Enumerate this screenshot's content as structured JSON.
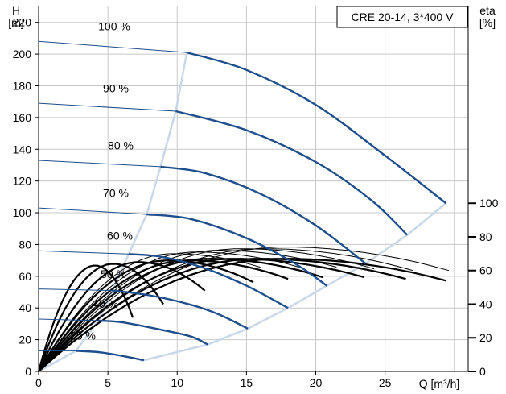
{
  "chart_data": {
    "type": "line",
    "title": "CRE 20-14, 3*400 V",
    "xlabel": "Q [m³/h]",
    "ylabel_left": [
      "H",
      "[m]"
    ],
    "ylabel_right": [
      "eta",
      "[%]"
    ],
    "xlim": [
      0,
      31
    ],
    "ylim": [
      0,
      230
    ],
    "xticks": [
      0,
      5,
      10,
      15,
      20,
      25
    ],
    "yticks_left": [
      0,
      20,
      40,
      60,
      80,
      100,
      120,
      140,
      160,
      180,
      200,
      220
    ],
    "yticks_right": [
      0,
      20,
      40,
      60,
      80,
      100
    ],
    "grid": true,
    "colors": {
      "speed": "#1f4e8c",
      "boundary": "#c8d8ea",
      "eta": "#000000",
      "grid": "#c8c8c8"
    },
    "speed_curves": [
      {
        "label": "100 %",
        "h0": 208,
        "points": [
          [
            10.7,
            201
          ],
          [
            15,
            190
          ],
          [
            20,
            168
          ],
          [
            25,
            136
          ],
          [
            29.4,
            106
          ]
        ]
      },
      {
        "label": "90 %",
        "h0": 169,
        "points": [
          [
            9.9,
            164
          ],
          [
            15,
            152
          ],
          [
            20,
            132
          ],
          [
            24,
            108
          ],
          [
            26.6,
            86
          ]
        ]
      },
      {
        "label": "80 %",
        "h0": 133,
        "points": [
          [
            8.8,
            129
          ],
          [
            12,
            125
          ],
          [
            16,
            112
          ],
          [
            20,
            92
          ],
          [
            23.6,
            68
          ]
        ]
      },
      {
        "label": "70 %",
        "h0": 103,
        "points": [
          [
            7.8,
            99
          ],
          [
            11,
            96
          ],
          [
            15,
            84
          ],
          [
            18.5,
            68
          ],
          [
            20.8,
            54
          ]
        ]
      },
      {
        "label": "60 %",
        "h0": 76,
        "points": [
          [
            6.5,
            74
          ],
          [
            9,
            72
          ],
          [
            12,
            65
          ],
          [
            15,
            54
          ],
          [
            18,
            40
          ]
        ]
      },
      {
        "label": "50 %",
        "h0": 52,
        "points": [
          [
            5.3,
            51
          ],
          [
            8,
            48
          ],
          [
            11,
            42
          ],
          [
            13,
            36
          ],
          [
            15.1,
            27
          ]
        ]
      },
      {
        "label": "40 %",
        "h0": 33,
        "points": [
          [
            4.3,
            32
          ],
          [
            6,
            31
          ],
          [
            9,
            26
          ],
          [
            11,
            22
          ],
          [
            12.2,
            17
          ]
        ]
      },
      {
        "label": "25 %",
        "h0": 13,
        "points": [
          [
            2.7,
            13
          ],
          [
            4.5,
            12
          ],
          [
            6.5,
            9
          ],
          [
            7.6,
            7
          ]
        ]
      }
    ],
    "max_speed_boundary": [
      [
        0,
        0
      ],
      [
        2.7,
        13
      ],
      [
        4.3,
        32
      ],
      [
        5.3,
        51
      ],
      [
        6.5,
        74
      ],
      [
        7.8,
        99
      ],
      [
        8.8,
        129
      ],
      [
        9.9,
        164
      ],
      [
        10.7,
        201
      ]
    ],
    "max_flow_boundary": [
      [
        7.6,
        7
      ],
      [
        12.2,
        17
      ],
      [
        15.1,
        27
      ],
      [
        18,
        40
      ],
      [
        20.8,
        54
      ],
      [
        23.6,
        68
      ],
      [
        26.6,
        86
      ],
      [
        29.4,
        106
      ]
    ],
    "eta_curves": [
      {
        "qmax": 6.8,
        "peak": 63,
        "end": 32
      },
      {
        "qmax": 9,
        "peak": 64,
        "end": 40
      },
      {
        "qmax": 12,
        "peak": 65,
        "end": 48
      },
      {
        "qmax": 15.5,
        "peak": 66,
        "end": 53
      },
      {
        "qmax": 18,
        "peak": 66,
        "end": 55
      },
      {
        "qmax": 20.5,
        "peak": 67,
        "end": 56
      },
      {
        "qmax": 23.5,
        "peak": 67,
        "end": 56
      },
      {
        "qmax": 26.5,
        "peak": 67,
        "end": 55
      },
      {
        "qmax": 29.4,
        "peak": 67,
        "end": 54
      },
      {
        "qmax": 29.6,
        "peak": 74,
        "end": 60
      },
      {
        "qmax": 27,
        "peak": 73,
        "end": 60
      },
      {
        "qmax": 24.2,
        "peak": 73,
        "end": 61
      },
      {
        "qmax": 21.5,
        "peak": 72,
        "end": 62
      },
      {
        "qmax": 18.8,
        "peak": 71,
        "end": 62
      },
      {
        "qmax": 16,
        "peak": 70,
        "end": 62
      }
    ]
  }
}
